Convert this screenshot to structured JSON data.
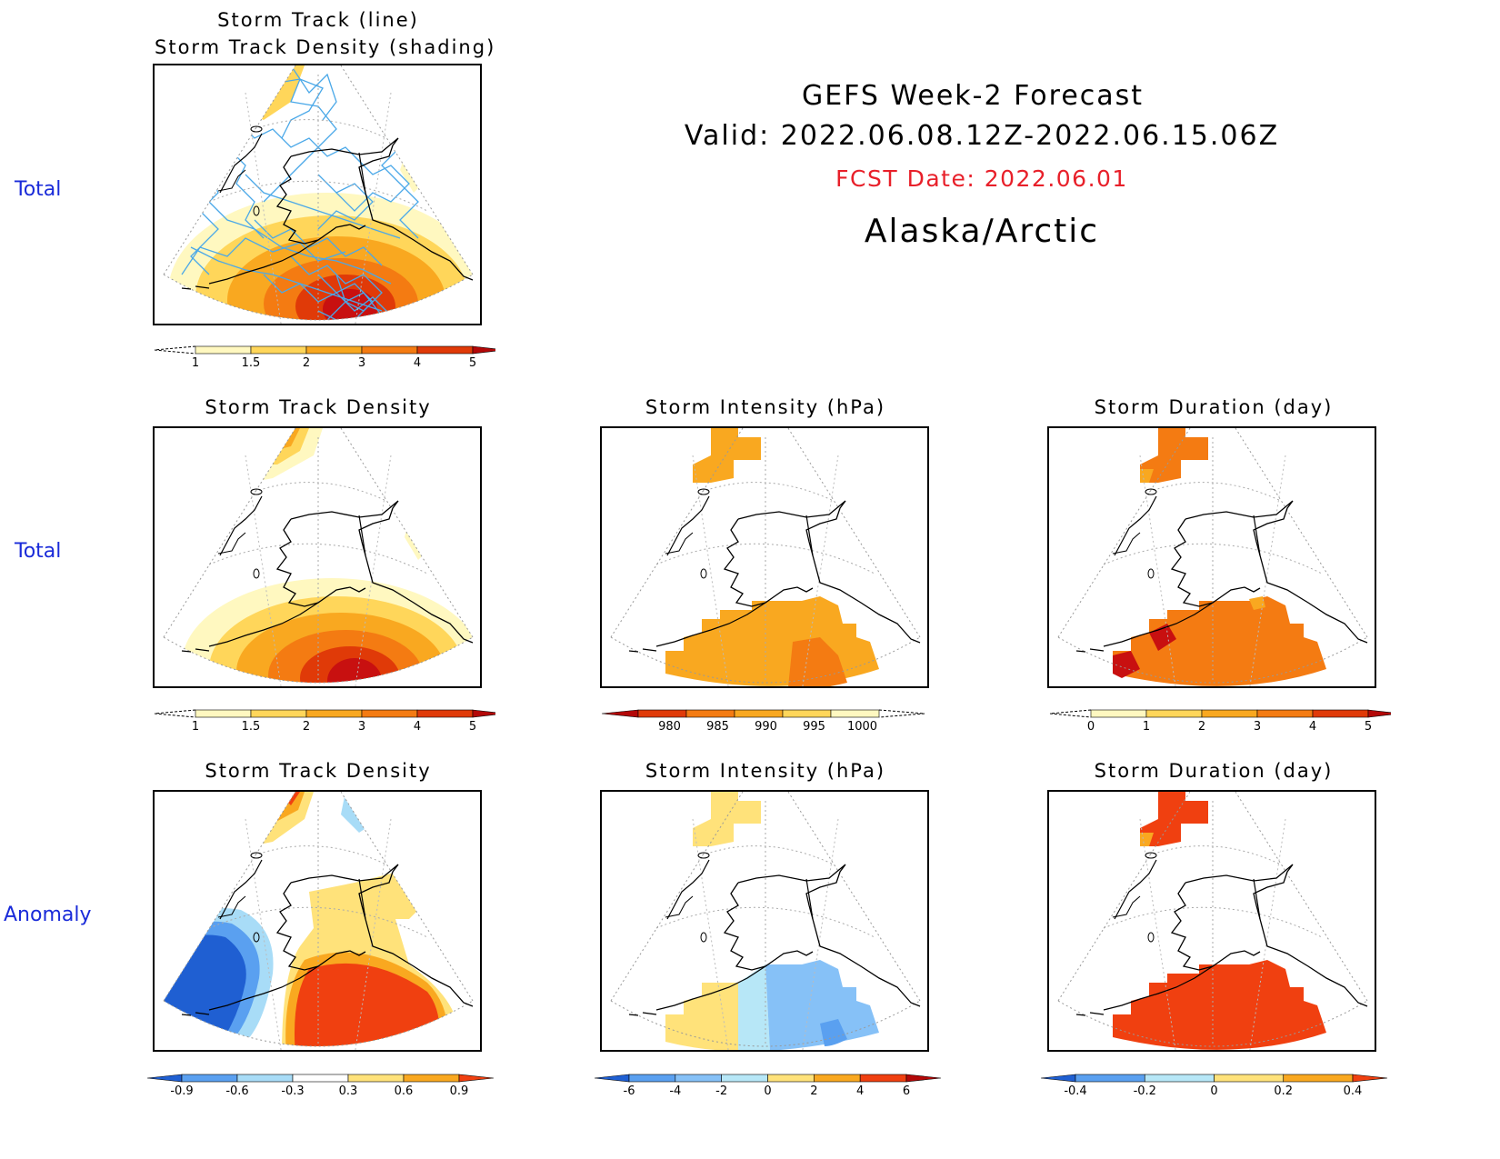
{
  "header": {
    "line1": "GEFS Week-2 Forecast",
    "line2": "Valid: 2022.06.08.12Z-2022.06.15.06Z",
    "fcst_date": "FCST Date: 2022.06.01",
    "region": "Alaska/Arctic"
  },
  "row_labels": {
    "row1": "Total",
    "row2": "Total",
    "row3": "Anomaly"
  },
  "panels": {
    "p1": {
      "title1": "Storm Track (line)",
      "title2": "Storm Track Density (shading)"
    },
    "p2": {
      "title": "Storm Track Density"
    },
    "p3": {
      "title": "Storm Intensity (hPa)"
    },
    "p4": {
      "title": "Storm Duration (day)"
    },
    "p5": {
      "title": "Storm Track Density"
    },
    "p6": {
      "title": "Storm Intensity (hPa)"
    },
    "p7": {
      "title": "Storm Duration (day)"
    }
  },
  "colorbars": {
    "density_total": {
      "ticks": [
        "1",
        "1.5",
        "2",
        "3",
        "4",
        "5"
      ],
      "colors": [
        "#fff8c0",
        "#ffd65a",
        "#f9a820",
        "#f47b12",
        "#e03a08",
        "#b30808"
      ]
    },
    "intensity_total": {
      "ticks": [
        "980",
        "985",
        "990",
        "995",
        "1000"
      ],
      "colors": [
        "#b30808",
        "#e03a08",
        "#f47b12",
        "#f9a820",
        "#ffd65a",
        "#fff8c0"
      ]
    },
    "duration_total": {
      "ticks": [
        "0",
        "1",
        "2",
        "3",
        "4",
        "5"
      ],
      "colors": [
        "#fff8c0",
        "#ffd65a",
        "#f9a820",
        "#f47b12",
        "#e03a08",
        "#b30808"
      ]
    },
    "density_anom": {
      "ticks": [
        "-0.9",
        "-0.6",
        "-0.3",
        "0.3",
        "0.6",
        "0.9"
      ],
      "colors": [
        "#1f5fd2",
        "#5aa0f0",
        "#a8dcf7",
        "#ffffff",
        "#ffe27a",
        "#f9a820",
        "#f04010"
      ]
    },
    "intensity_anom": {
      "ticks": [
        "-6",
        "-4",
        "-2",
        "0",
        "2",
        "4",
        "6"
      ],
      "colors": [
        "#1f5fd2",
        "#5aa0f0",
        "#86c1f7",
        "#b7e7f7",
        "#ffe27a",
        "#f9a820",
        "#f04010",
        "#b30808"
      ]
    },
    "duration_anom": {
      "ticks": [
        "-0.4",
        "-0.2",
        "0",
        "0.2",
        "0.4"
      ],
      "colors": [
        "#1f5fd2",
        "#5aa0f0",
        "#b7e7f7",
        "#ffe27a",
        "#f9a820",
        "#f04010"
      ]
    }
  },
  "colors": {
    "row_label": "#1a2bd9",
    "fcst_date": "#e8202a",
    "track_line": "#4aa8e8"
  }
}
